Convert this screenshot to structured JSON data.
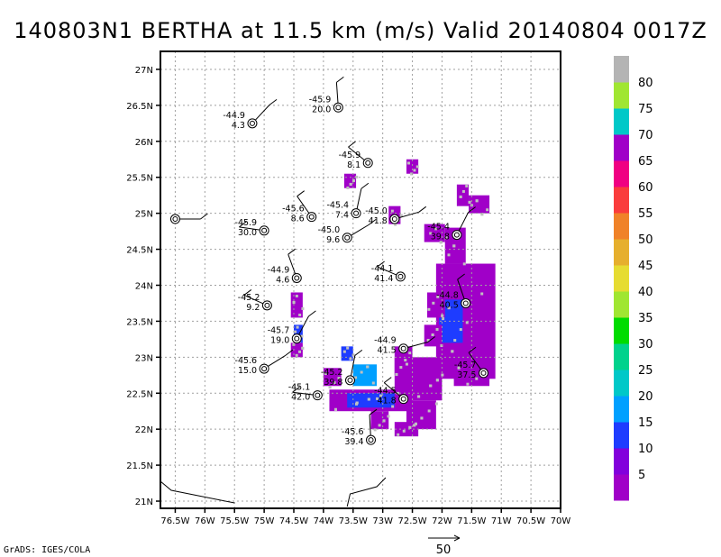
{
  "chart_data": {
    "type": "scatter",
    "title": "140803N1 BERTHA at 11.5 km (m/s) Valid 20140804 0017Z",
    "xlim": [
      -76.75,
      -70.0
    ],
    "ylim": [
      20.9,
      27.25
    ],
    "x_ticks": [
      -76.5,
      -76,
      -75.5,
      -75,
      -74.5,
      -74,
      -73.5,
      -73,
      -72.5,
      -72,
      -71.5,
      -71,
      -70.5,
      -70
    ],
    "x_tick_labels": [
      "76.5W",
      "76W",
      "75.5W",
      "75W",
      "74.5W",
      "74W",
      "73.5W",
      "73W",
      "72.5W",
      "72W",
      "71.5W",
      "71W",
      "70.5W",
      "70W"
    ],
    "y_ticks": [
      21,
      21.5,
      22,
      22.5,
      23,
      23.5,
      24,
      24.5,
      25,
      25.5,
      26,
      26.5,
      27
    ],
    "y_tick_labels": [
      "21N",
      "21.5N",
      "22N",
      "22.5N",
      "23N",
      "23.5N",
      "24N",
      "24.5N",
      "25N",
      "25.5N",
      "26N",
      "26.5N",
      "27N"
    ],
    "grid": true,
    "colorbar": {
      "levels": [
        "5",
        "10",
        "15",
        "20",
        "25",
        "30",
        "35",
        "40",
        "45",
        "50",
        "55",
        "60",
        "65",
        "70",
        "75",
        "80"
      ],
      "colors": [
        "#a000c8",
        "#8200dc",
        "#1e3cff",
        "#00a0ff",
        "#00c8c8",
        "#00d28c",
        "#00dc00",
        "#a0e632",
        "#e6dc32",
        "#e6af2d",
        "#f08228",
        "#fa3c3c",
        "#f00082",
        "#a000c8",
        "#00c8c8",
        "#a0e632",
        "#b4b4b4"
      ]
    },
    "observations": [
      {
        "lon": -76.5,
        "lat": 24.92,
        "label": [
          "",
          ""
        ]
      },
      {
        "lon": -75.2,
        "lat": 26.25,
        "label": [
          "-44.9",
          "4.3"
        ]
      },
      {
        "lon": -73.75,
        "lat": 26.47,
        "label": [
          "-45.9",
          "20.0"
        ]
      },
      {
        "lon": -73.25,
        "lat": 25.7,
        "label": [
          "-45.9",
          "8.1"
        ]
      },
      {
        "lon": -75.0,
        "lat": 24.76,
        "label": [
          "-45.9",
          "30.0"
        ]
      },
      {
        "lon": -74.2,
        "lat": 24.95,
        "label": [
          "-45.6",
          "8.6"
        ]
      },
      {
        "lon": -73.45,
        "lat": 25.0,
        "label": [
          "-45.4",
          "7.4"
        ]
      },
      {
        "lon": -73.6,
        "lat": 24.66,
        "label": [
          "-45.0",
          "9.6"
        ]
      },
      {
        "lon": -72.8,
        "lat": 24.92,
        "label": [
          "-45.0",
          "41.8"
        ]
      },
      {
        "lon": -71.75,
        "lat": 24.7,
        "label": [
          "-45.4",
          "39.8"
        ]
      },
      {
        "lon": -74.45,
        "lat": 24.1,
        "label": [
          "-44.9",
          "4.6"
        ]
      },
      {
        "lon": -72.7,
        "lat": 24.12,
        "label": [
          "-44.1",
          "41.4"
        ]
      },
      {
        "lon": -74.95,
        "lat": 23.72,
        "label": [
          "-45.2",
          "9.2"
        ]
      },
      {
        "lon": -71.6,
        "lat": 23.75,
        "label": [
          "-44.8",
          "40.5"
        ]
      },
      {
        "lon": -74.45,
        "lat": 23.26,
        "label": [
          "-45.7",
          "19.0"
        ]
      },
      {
        "lon": -72.65,
        "lat": 23.12,
        "label": [
          "-44.9",
          "41.5"
        ]
      },
      {
        "lon": -75.0,
        "lat": 22.84,
        "label": [
          "-45.6",
          "15.0"
        ]
      },
      {
        "lon": -73.55,
        "lat": 22.68,
        "label": [
          "-45.2",
          "39.8"
        ]
      },
      {
        "lon": -71.3,
        "lat": 22.78,
        "label": [
          "-45.7",
          "37.5"
        ]
      },
      {
        "lon": -74.1,
        "lat": 22.47,
        "label": [
          "-45.1",
          "42.0"
        ]
      },
      {
        "lon": -72.65,
        "lat": 22.42,
        "label": [
          "-44.5",
          "41.8"
        ]
      },
      {
        "lon": -73.2,
        "lat": 21.85,
        "label": [
          "-45.6",
          "39.4"
        ]
      }
    ]
  },
  "footer": {
    "credit": "GrADS: IGES/COLA",
    "reference_vector_label": "50"
  }
}
